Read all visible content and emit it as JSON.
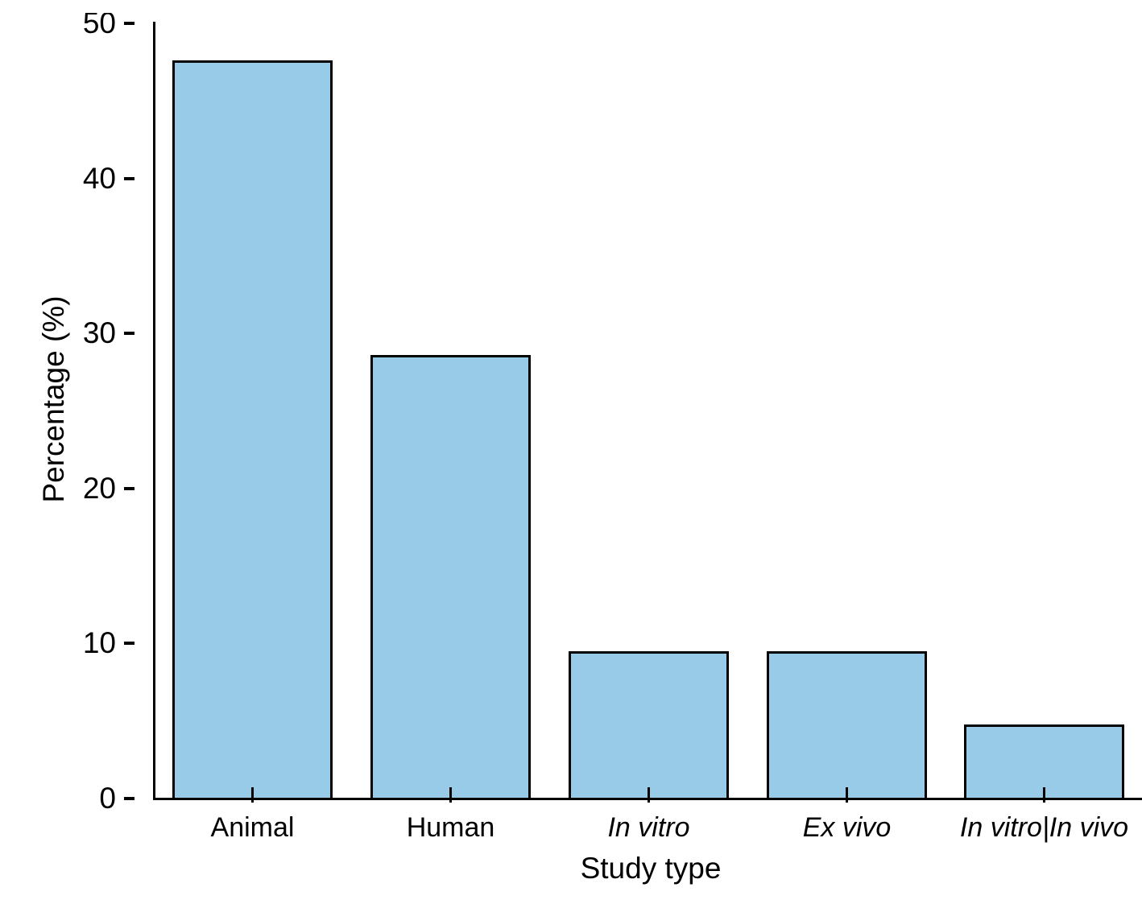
{
  "chart_data": {
    "type": "bar",
    "title": "",
    "xlabel": "Study type",
    "ylabel": "Percentage (%)",
    "categories": [
      "Animal",
      "Human",
      "In vitro",
      "Ex vivo",
      "In vitro|In vivo"
    ],
    "italic_categories": [
      false,
      false,
      true,
      true,
      true
    ],
    "values": [
      47.6,
      28.6,
      9.5,
      9.5,
      4.8
    ],
    "yticks": [
      0,
      10,
      20,
      30,
      40,
      50
    ],
    "ylim": [
      0,
      50
    ],
    "grid": false,
    "legend_position": "none",
    "bar_color": "#97CBE8",
    "bar_border_color": "#000000",
    "axis_color": "#000000",
    "background_color": "#FFFFFF"
  }
}
